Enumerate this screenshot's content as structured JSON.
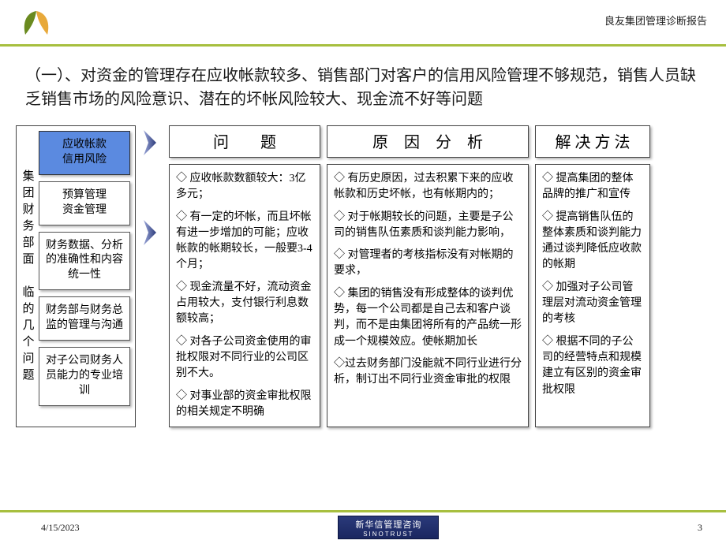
{
  "header": {
    "doc_title": "良友集团管理诊断报告",
    "logo_colors": {
      "left": "#6a8a1f",
      "right": "#e8a93a"
    },
    "rule_color": "#a7bf3f"
  },
  "title": "（一）、对资金的管理存在应收帐款较多、销售部门对客户的信用风险管理不够规范，销售人员缺乏销售市场的风险意识、潜在的坏帐风险较大、现金流不好等问题",
  "left": {
    "vertical_label": "集团财务部面 临的几个问题",
    "boxes": [
      {
        "text": "应收帐款\n信用风险",
        "active": true
      },
      {
        "text": "预算管理\n资金管理",
        "active": false
      },
      {
        "text": "财务数据、分析的准确性和内容统一性",
        "active": false
      },
      {
        "text": "财务部与财务总监的管理与沟通",
        "active": false
      },
      {
        "text": "对子公司财务人员能力的专业培训",
        "active": false
      }
    ],
    "active_bg": "#5b8ae0"
  },
  "arrows": {
    "color": "#2b3a7a"
  },
  "columns": {
    "problem": {
      "header": "问　　题",
      "bullets": [
        "◇ 应收帐款数额较大：3亿多元；",
        "◇ 有一定的坏帐，而且坏帐有进一步增加的可能；应收帐款的帐期较长，一般要3-4个月；",
        "◇ 现金流量不好，流动资金占用较大，支付银行利息数额较高；",
        "◇ 对各子公司资金使用的审批权限对不同行业的公司区别不大。",
        "◇ 对事业部的资金审批权限的相关规定不明确"
      ]
    },
    "reason": {
      "header": "原　因　分　析",
      "bullets": [
        "◇ 有历史原因，过去积累下来的应收帐款和历史坏帐，也有帐期内的；",
        "◇ 对于帐期较长的问题，主要是子公司的销售队伍素质和谈判能力影响，",
        "◇ 对管理者的考核指标没有对帐期的要求，",
        "◇ 集团的销售没有形成整体的谈判优势，每一个公司都是自己去和客户谈判，而不是由集团将所有的产品统一形成一个规模效应。使帐期加长",
        "◇过去财务部门没能就不同行业进行分析，制订出不同行业资金审批的权限"
      ]
    },
    "solve": {
      "header": "解 决 方 法",
      "bullets": [
        "◇ 提高集团的整体品牌的推广和宣传",
        "◇ 提高销售队伍的整体素质和谈判能力通过谈判降低应收款的帐期",
        "◇ 加强对子公司管理层对流动资金管理的考核",
        "◇ 根据不同的子公司的经营特点和规模建立有区别的资金审批权限"
      ]
    }
  },
  "footer": {
    "date": "4/15/2023",
    "page": "3",
    "brand_cn": "新华信管理咨询",
    "brand_en": "SINOTRUST"
  },
  "style": {
    "box_border": "#444444",
    "shadow": "rgba(0,0,0,0.3)",
    "body_font_size": 14,
    "title_font_size": 20
  }
}
